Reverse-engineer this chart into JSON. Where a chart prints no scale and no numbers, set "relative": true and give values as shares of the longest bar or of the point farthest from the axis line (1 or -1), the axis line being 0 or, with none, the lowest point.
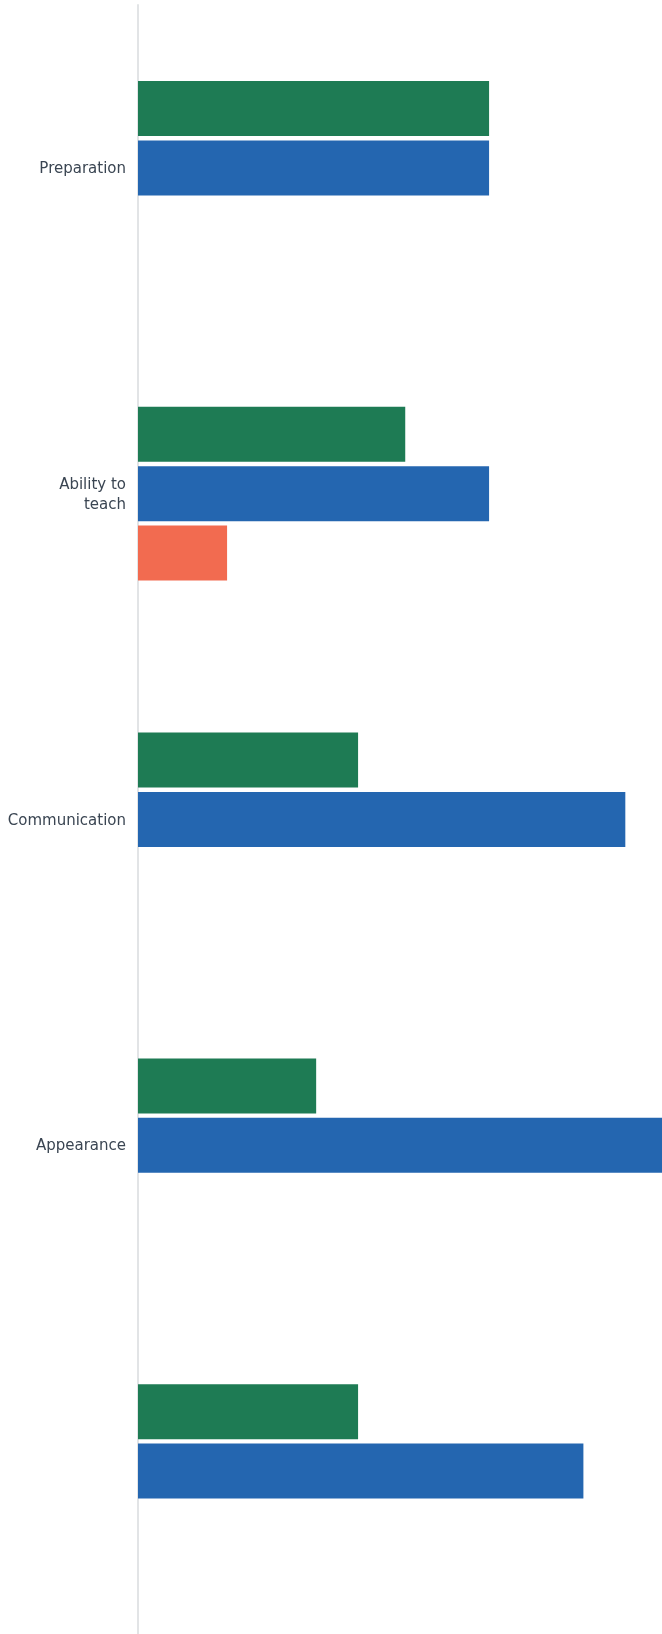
{
  "chart_data": {
    "type": "bar",
    "orientation": "horizontal",
    "relative": true,
    "categories": [
      "Preparation",
      "Ability to teach",
      "Communication",
      "Appearance",
      null
    ],
    "series": [
      {
        "color": "#1e7b54",
        "values": [
          0.67,
          0.51,
          0.42,
          0.34,
          0.42
        ]
      },
      {
        "color": "#2466b0",
        "values": [
          0.67,
          0.67,
          0.93,
          1,
          0.85
        ]
      },
      {
        "color": "#f26b50",
        "values": [
          null,
          0.17,
          null,
          null,
          null
        ]
      }
    ]
  }
}
